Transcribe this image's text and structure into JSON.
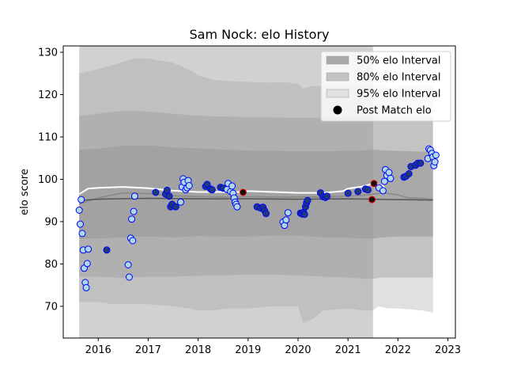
{
  "chart_data": {
    "type": "scatter",
    "title": "Sam Nock: elo History",
    "xlabel": "",
    "ylabel": "elo score",
    "xlim": [
      2015.3,
      2023.15
    ],
    "ylim": [
      62.5,
      131.5
    ],
    "x_ticks": [
      2016,
      2017,
      2018,
      2019,
      2020,
      2021,
      2022,
      2023
    ],
    "x_tick_labels": [
      "2016",
      "2017",
      "2018",
      "2019",
      "2020",
      "2021",
      "2022",
      "2023"
    ],
    "y_ticks": [
      70,
      80,
      90,
      100,
      110,
      120,
      130
    ],
    "y_tick_labels": [
      "70",
      "80",
      "90",
      "100",
      "110",
      "120",
      "130"
    ],
    "grid": false,
    "legend_position": "top-right",
    "legend": [
      {
        "label": "50% elo Interval",
        "kind": "patch",
        "color": "#a9a9a9"
      },
      {
        "label": "80% elo Interval",
        "kind": "patch",
        "color": "#c3c3c3"
      },
      {
        "label": "95% elo Interval",
        "kind": "patch",
        "color": "#e0e0e0"
      },
      {
        "label": "Post Match elo",
        "kind": "marker",
        "color": "#000000"
      }
    ],
    "bands": [
      {
        "name": "95% elo Interval",
        "color": "#e0e0e0",
        "x": [
          2015.62,
          2016.0,
          2016.3,
          2016.7,
          2017.0,
          2017.5,
          2017.8,
          2018.0,
          2018.3,
          2018.6,
          2019.0,
          2019.5,
          2019.7,
          2020.0,
          2020.1,
          2020.3,
          2020.5,
          2021.0,
          2021.3,
          2021.5,
          2021.6,
          2021.8,
          2022.0,
          2022.2,
          2022.5,
          2022.7
        ],
        "upper": [
          125.0,
          126.0,
          127.0,
          128.5,
          128.5,
          127.5,
          126.0,
          124.5,
          123.5,
          123.2,
          123.0,
          122.8,
          123.0,
          122.5,
          121.5,
          122.0,
          122.0,
          122.0,
          122.3,
          122.5,
          122.3,
          121.8,
          122.0,
          122.2,
          122.0,
          122.0
        ],
        "lower": [
          71.0,
          71.0,
          70.5,
          70.5,
          70.5,
          70.0,
          69.5,
          69.0,
          69.0,
          69.5,
          69.5,
          70.0,
          70.0,
          70.0,
          66.0,
          67.0,
          69.0,
          69.5,
          69.0,
          69.0,
          70.0,
          69.5,
          69.5,
          69.3,
          69.0,
          68.5
        ]
      },
      {
        "name": "80% elo Interval",
        "color": "#c3c3c3",
        "x": [
          2015.62,
          2016.0,
          2016.5,
          2017.0,
          2017.5,
          2018.0,
          2018.5,
          2019.0,
          2019.5,
          2020.0,
          2020.5,
          2021.0,
          2021.3,
          2021.5,
          2021.7,
          2022.0,
          2022.3,
          2022.7
        ],
        "upper": [
          115.0,
          115.5,
          116.2,
          116.0,
          115.5,
          115.0,
          114.8,
          114.7,
          114.6,
          114.5,
          114.5,
          114.7,
          114.8,
          114.9,
          114.5,
          114.5,
          114.5,
          114.5
        ],
        "lower": [
          77.0,
          77.0,
          76.7,
          77.0,
          77.0,
          77.2,
          77.3,
          77.5,
          77.5,
          77.3,
          77.0,
          76.8,
          76.5,
          76.5,
          76.8,
          76.8,
          76.8,
          76.8
        ]
      },
      {
        "name": "50% elo Interval",
        "color": "#a9a9a9",
        "x": [
          2015.62,
          2016.0,
          2016.5,
          2017.0,
          2017.5,
          2018.0,
          2018.5,
          2019.0,
          2019.5,
          2020.0,
          2020.5,
          2021.0,
          2021.3,
          2021.5,
          2021.7,
          2022.0,
          2022.3,
          2022.7
        ],
        "upper": [
          107.0,
          107.2,
          108.0,
          108.0,
          107.5,
          107.3,
          107.0,
          106.8,
          106.7,
          106.6,
          106.6,
          106.7,
          106.8,
          107.0,
          106.8,
          106.7,
          106.6,
          106.5
        ],
        "lower": [
          86.0,
          86.0,
          86.3,
          86.5,
          86.3,
          86.6,
          86.5,
          86.5,
          86.7,
          86.7,
          86.3,
          86.2,
          86.0,
          86.0,
          86.3,
          86.5,
          86.5,
          86.5
        ]
      }
    ],
    "shaded_region": {
      "x_start": 2015.62,
      "x_end": 2021.5,
      "color": "#9a9a9a",
      "opacity": 0.45
    },
    "lines": [
      {
        "name": "white-expected-line",
        "color": "#ffffff",
        "x": [
          2015.62,
          2015.8,
          2016.0,
          2016.5,
          2017.0,
          2017.5,
          2018.0,
          2018.5,
          2018.9,
          2019.0,
          2019.5,
          2020.0,
          2020.5,
          2020.9,
          2021.0,
          2021.3,
          2021.5,
          2021.7,
          2021.75
        ],
        "y": [
          96.5,
          97.8,
          98.0,
          98.2,
          97.9,
          97.3,
          97.0,
          97.0,
          97.0,
          97.2,
          97.0,
          96.8,
          96.8,
          97.2,
          97.8,
          98.3,
          99.0,
          98.5,
          97.5
        ]
      },
      {
        "name": "gray-rating-line",
        "color": "#888888",
        "x": [
          2015.62,
          2016.0,
          2016.5,
          2017.0,
          2017.5,
          2018.0,
          2018.5,
          2019.0,
          2019.5,
          2020.0,
          2020.5,
          2021.0,
          2021.3,
          2021.5,
          2021.7,
          2022.0,
          2022.2,
          2022.5,
          2022.7
        ],
        "y": [
          94.2,
          95.6,
          96.8,
          96.6,
          96.1,
          95.9,
          95.8,
          95.9,
          95.8,
          95.8,
          95.8,
          96.0,
          96.2,
          96.5,
          96.8,
          96.3,
          95.6,
          95.5,
          95.3
        ]
      },
      {
        "name": "dark-gray-rating-line",
        "color": "#555555",
        "x": [
          2015.62,
          2016.0,
          2017.0,
          2018.0,
          2019.0,
          2020.0,
          2021.0,
          2021.5,
          2022.0,
          2022.7
        ],
        "y": [
          95.0,
          95.3,
          95.5,
          95.4,
          95.4,
          95.3,
          95.4,
          95.3,
          95.2,
          95.1
        ]
      }
    ],
    "points": [
      {
        "x": 2015.62,
        "y": 92.7,
        "kind": "light"
      },
      {
        "x": 2015.64,
        "y": 89.4,
        "kind": "light"
      },
      {
        "x": 2015.66,
        "y": 95.2,
        "kind": "light"
      },
      {
        "x": 2015.68,
        "y": 87.2,
        "kind": "light"
      },
      {
        "x": 2015.7,
        "y": 83.3,
        "kind": "light"
      },
      {
        "x": 2015.72,
        "y": 79.0,
        "kind": "light"
      },
      {
        "x": 2015.74,
        "y": 75.6,
        "kind": "light"
      },
      {
        "x": 2015.76,
        "y": 74.4,
        "kind": "light"
      },
      {
        "x": 2015.78,
        "y": 80.1,
        "kind": "light"
      },
      {
        "x": 2015.8,
        "y": 83.5,
        "kind": "light"
      },
      {
        "x": 2016.17,
        "y": 83.3,
        "kind": "dark"
      },
      {
        "x": 2016.6,
        "y": 79.8,
        "kind": "light"
      },
      {
        "x": 2016.62,
        "y": 76.9,
        "kind": "light"
      },
      {
        "x": 2016.65,
        "y": 86.1,
        "kind": "light"
      },
      {
        "x": 2016.67,
        "y": 90.6,
        "kind": "light"
      },
      {
        "x": 2016.69,
        "y": 85.5,
        "kind": "light"
      },
      {
        "x": 2016.71,
        "y": 92.4,
        "kind": "light"
      },
      {
        "x": 2016.73,
        "y": 96.0,
        "kind": "light"
      },
      {
        "x": 2017.15,
        "y": 96.9,
        "kind": "dark"
      },
      {
        "x": 2017.35,
        "y": 96.5,
        "kind": "dark"
      },
      {
        "x": 2017.38,
        "y": 97.4,
        "kind": "dark"
      },
      {
        "x": 2017.42,
        "y": 96.0,
        "kind": "dark"
      },
      {
        "x": 2017.45,
        "y": 93.5,
        "kind": "dark"
      },
      {
        "x": 2017.48,
        "y": 94.1,
        "kind": "dark"
      },
      {
        "x": 2017.55,
        "y": 93.5,
        "kind": "dark"
      },
      {
        "x": 2017.65,
        "y": 94.6,
        "kind": "light"
      },
      {
        "x": 2017.68,
        "y": 98.2,
        "kind": "light"
      },
      {
        "x": 2017.7,
        "y": 100.1,
        "kind": "light"
      },
      {
        "x": 2017.72,
        "y": 99.3,
        "kind": "light"
      },
      {
        "x": 2017.75,
        "y": 97.5,
        "kind": "light"
      },
      {
        "x": 2017.78,
        "y": 98.0,
        "kind": "light"
      },
      {
        "x": 2017.8,
        "y": 99.7,
        "kind": "light"
      },
      {
        "x": 2017.82,
        "y": 98.5,
        "kind": "light"
      },
      {
        "x": 2018.15,
        "y": 98.3,
        "kind": "dark"
      },
      {
        "x": 2018.18,
        "y": 98.8,
        "kind": "dark"
      },
      {
        "x": 2018.25,
        "y": 97.7,
        "kind": "dark"
      },
      {
        "x": 2018.28,
        "y": 97.5,
        "kind": "dark"
      },
      {
        "x": 2018.45,
        "y": 98.1,
        "kind": "dark"
      },
      {
        "x": 2018.5,
        "y": 97.9,
        "kind": "dark"
      },
      {
        "x": 2018.58,
        "y": 97.6,
        "kind": "light"
      },
      {
        "x": 2018.6,
        "y": 99.0,
        "kind": "light"
      },
      {
        "x": 2018.65,
        "y": 97.1,
        "kind": "light"
      },
      {
        "x": 2018.68,
        "y": 98.4,
        "kind": "light"
      },
      {
        "x": 2018.7,
        "y": 96.7,
        "kind": "light"
      },
      {
        "x": 2018.72,
        "y": 95.6,
        "kind": "light"
      },
      {
        "x": 2018.74,
        "y": 94.6,
        "kind": "light"
      },
      {
        "x": 2018.76,
        "y": 94.1,
        "kind": "light"
      },
      {
        "x": 2018.78,
        "y": 93.5,
        "kind": "light"
      },
      {
        "x": 2018.9,
        "y": 96.9,
        "kind": "red"
      },
      {
        "x": 2019.18,
        "y": 93.5,
        "kind": "dark"
      },
      {
        "x": 2019.25,
        "y": 93.2,
        "kind": "dark"
      },
      {
        "x": 2019.3,
        "y": 93.4,
        "kind": "dark"
      },
      {
        "x": 2019.33,
        "y": 92.6,
        "kind": "dark"
      },
      {
        "x": 2019.36,
        "y": 91.9,
        "kind": "dark"
      },
      {
        "x": 2019.7,
        "y": 89.9,
        "kind": "light"
      },
      {
        "x": 2019.73,
        "y": 89.1,
        "kind": "light"
      },
      {
        "x": 2019.76,
        "y": 90.4,
        "kind": "light"
      },
      {
        "x": 2019.8,
        "y": 92.1,
        "kind": "light"
      },
      {
        "x": 2020.05,
        "y": 92.0,
        "kind": "dark"
      },
      {
        "x": 2020.08,
        "y": 91.8,
        "kind": "dark"
      },
      {
        "x": 2020.11,
        "y": 92.2,
        "kind": "dark"
      },
      {
        "x": 2020.13,
        "y": 91.7,
        "kind": "dark"
      },
      {
        "x": 2020.15,
        "y": 93.5,
        "kind": "dark"
      },
      {
        "x": 2020.17,
        "y": 94.4,
        "kind": "dark"
      },
      {
        "x": 2020.19,
        "y": 95.0,
        "kind": "dark"
      },
      {
        "x": 2020.45,
        "y": 96.8,
        "kind": "dark"
      },
      {
        "x": 2020.5,
        "y": 95.9,
        "kind": "dark"
      },
      {
        "x": 2020.55,
        "y": 95.7,
        "kind": "dark"
      },
      {
        "x": 2020.58,
        "y": 96.0,
        "kind": "dark"
      },
      {
        "x": 2021.0,
        "y": 96.7,
        "kind": "dark"
      },
      {
        "x": 2021.2,
        "y": 97.1,
        "kind": "dark"
      },
      {
        "x": 2021.35,
        "y": 97.7,
        "kind": "dark"
      },
      {
        "x": 2021.4,
        "y": 97.5,
        "kind": "dark"
      },
      {
        "x": 2021.48,
        "y": 95.2,
        "kind": "red"
      },
      {
        "x": 2021.52,
        "y": 99.0,
        "kind": "red"
      },
      {
        "x": 2021.62,
        "y": 98.0,
        "kind": "light"
      },
      {
        "x": 2021.7,
        "y": 97.3,
        "kind": "light"
      },
      {
        "x": 2021.73,
        "y": 99.5,
        "kind": "light"
      },
      {
        "x": 2021.75,
        "y": 102.3,
        "kind": "light"
      },
      {
        "x": 2021.78,
        "y": 100.9,
        "kind": "light"
      },
      {
        "x": 2021.82,
        "y": 101.6,
        "kind": "light"
      },
      {
        "x": 2021.85,
        "y": 100.2,
        "kind": "light"
      },
      {
        "x": 2022.12,
        "y": 100.5,
        "kind": "dark"
      },
      {
        "x": 2022.16,
        "y": 100.7,
        "kind": "dark"
      },
      {
        "x": 2022.22,
        "y": 101.3,
        "kind": "dark"
      },
      {
        "x": 2022.26,
        "y": 103.0,
        "kind": "dark"
      },
      {
        "x": 2022.35,
        "y": 103.3,
        "kind": "dark"
      },
      {
        "x": 2022.4,
        "y": 103.8,
        "kind": "dark"
      },
      {
        "x": 2022.45,
        "y": 103.8,
        "kind": "dark"
      },
      {
        "x": 2022.6,
        "y": 104.9,
        "kind": "light"
      },
      {
        "x": 2022.62,
        "y": 107.2,
        "kind": "light"
      },
      {
        "x": 2022.65,
        "y": 106.9,
        "kind": "light"
      },
      {
        "x": 2022.68,
        "y": 106.1,
        "kind": "light"
      },
      {
        "x": 2022.7,
        "y": 105.3,
        "kind": "light"
      },
      {
        "x": 2022.72,
        "y": 103.2,
        "kind": "light"
      },
      {
        "x": 2022.74,
        "y": 104.1,
        "kind": "light"
      },
      {
        "x": 2022.76,
        "y": 105.7,
        "kind": "light"
      }
    ],
    "colors": {
      "light_fill": "#add8e6",
      "dark_fill": "#1f3a7a",
      "marker_edge": "#0000ff",
      "red_edge": "#ff0000",
      "red_fill": "#101010"
    }
  }
}
